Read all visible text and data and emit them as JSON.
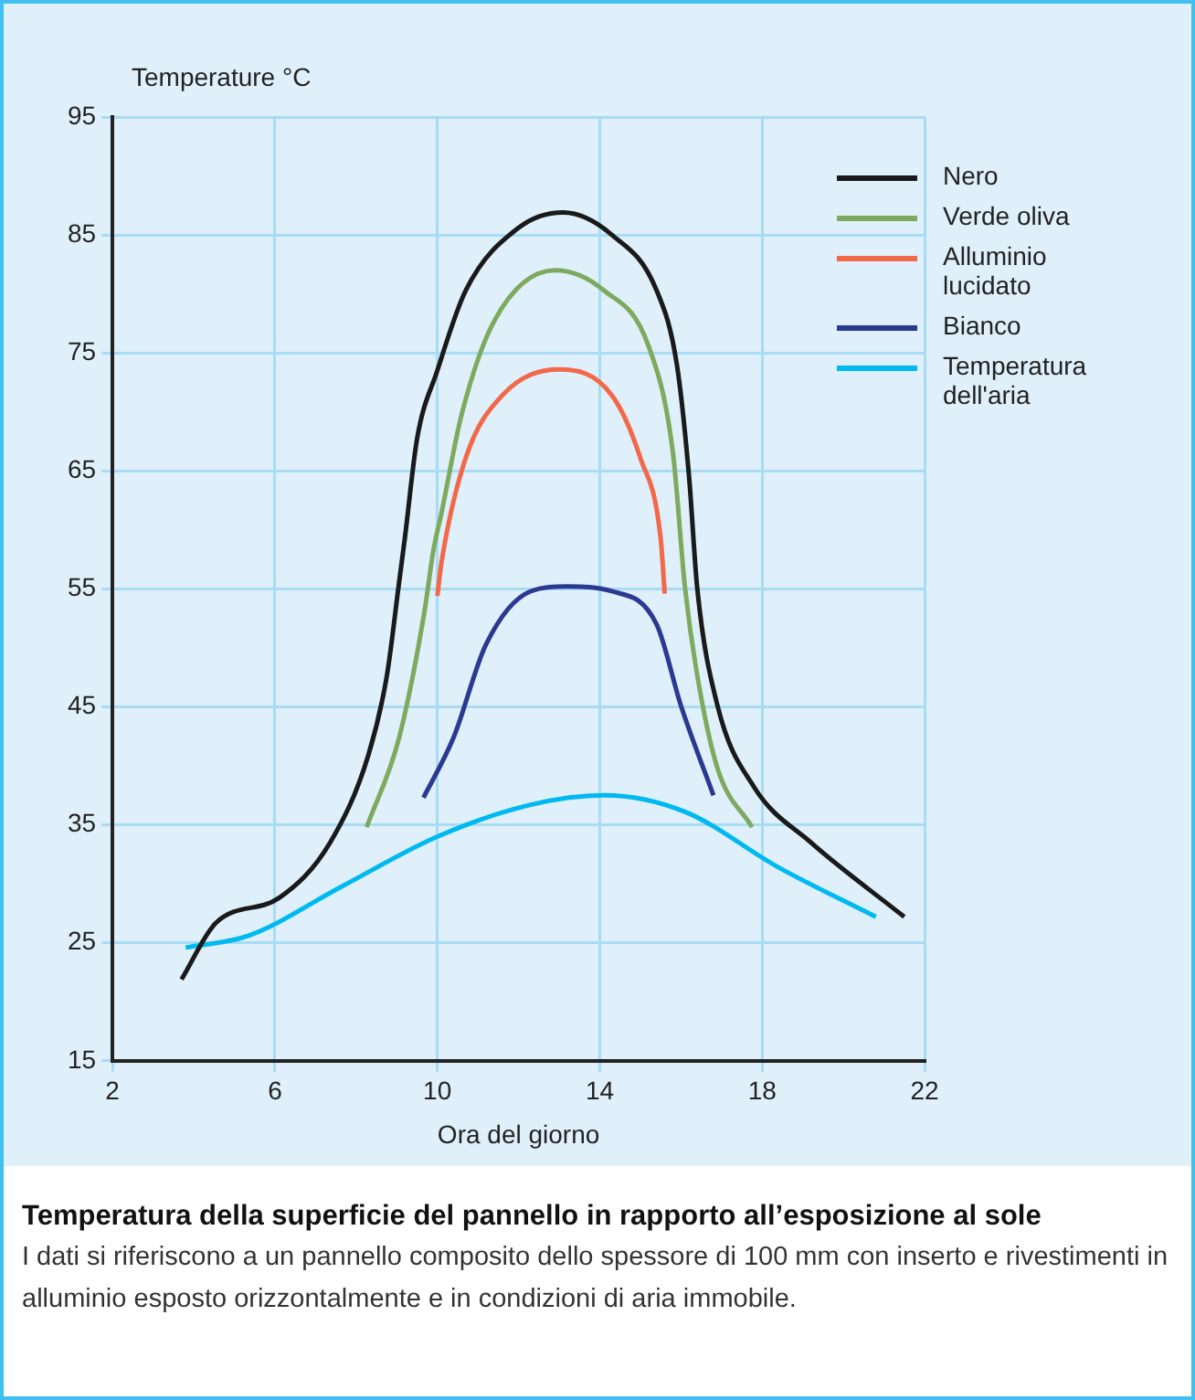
{
  "chart_data": {
    "type": "line",
    "title": "Temperatura della superficie del pannello in rapporto all’esposizione al sole",
    "ylabel": "Temperature °C",
    "xlabel": "Ora del giorno",
    "annotations": [
      "I dati si riferiscono a un pannello composito dello spessore di 100 mm con inserto e rivestimenti in alluminio esposto orizzontalmente e in condizioni di aria immobile."
    ],
    "xlim": [
      2,
      22
    ],
    "xticks": [
      2,
      6,
      10,
      14,
      18,
      22
    ],
    "ylim": [
      15,
      95
    ],
    "yticks": [
      15,
      25,
      35,
      45,
      55,
      65,
      75,
      85,
      95
    ],
    "grid": true,
    "legend": "top right",
    "marker": "none",
    "line_style": "solid",
    "series": [
      {
        "name": "Nero",
        "color": "#1a1a1a",
        "x": [
          3.7,
          4.55,
          6.1,
          7.36,
          8.3,
          8.76,
          9.06,
          9.2,
          9.5,
          10.0,
          10.7,
          12.0,
          13.1,
          14.3,
          15.4,
          15.9,
          16.2,
          16.4,
          16.9,
          17.8,
          19.2,
          21.5
        ],
        "values": [
          21.9,
          26.7,
          28.8,
          33.5,
          40.9,
          47.7,
          55.6,
          59.3,
          67.7,
          73.5,
          80.3,
          85.6,
          86.9,
          85,
          80.3,
          74,
          64.5,
          55.1,
          45.1,
          38.2,
          33.5,
          27.2
        ]
      },
      {
        "name": "Verde oliva",
        "color": "#7daa5f",
        "x": [
          8.26,
          9.06,
          9.68,
          9.9,
          10.1,
          10.6,
          11.4,
          12.9,
          14.1,
          15.2,
          15.8,
          16.1,
          16.4,
          16.9,
          17.75
        ],
        "values": [
          34.8,
          42.4,
          53,
          58.2,
          61.4,
          69.8,
          77.7,
          82,
          80.3,
          75.6,
          66.6,
          55.1,
          47.7,
          39.8,
          34.8
        ]
      },
      {
        "name": "Alluminio lucidato",
        "color": "#f26849",
        "x": [
          10.0,
          10.1,
          10.7,
          11.6,
          13.0,
          14.3,
          15.0,
          15.5,
          15.6
        ],
        "values": [
          54.4,
          57.2,
          66.1,
          71.4,
          73.6,
          71.4,
          66.1,
          59.3,
          54.6
        ]
      },
      {
        "name": "Bianco",
        "color": "#2b3990",
        "x": [
          9.66,
          10.4,
          11.2,
          12.3,
          13.2,
          14.3,
          15.4,
          16.0,
          16.8
        ],
        "values": [
          37.3,
          42.4,
          50.3,
          54.8,
          55.2,
          54.8,
          52,
          45.1,
          37.5
        ]
      },
      {
        "name": "Temperatura dell'aria",
        "color": "#00b9f0",
        "x": [
          3.8,
          5.35,
          7.66,
          10.0,
          12.3,
          14.1,
          16.1,
          18.4,
          20.8
        ],
        "values": [
          24.6,
          25.6,
          29.8,
          34,
          36.7,
          37.5,
          36.1,
          31.4,
          27.2
        ]
      }
    ]
  }
}
